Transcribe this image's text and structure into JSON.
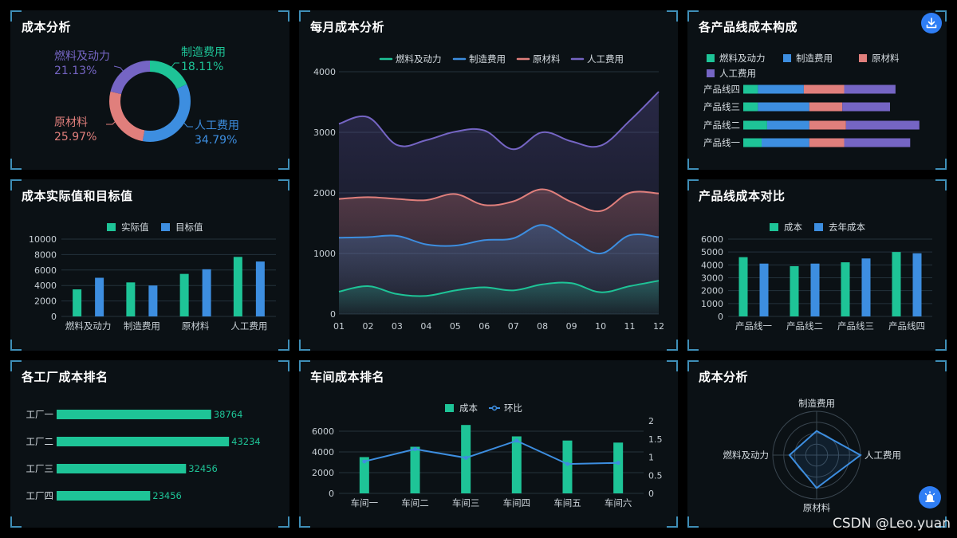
{
  "colors": {
    "fuel": "#1ec497",
    "manufacturing": "#3d8ee0",
    "raw": "#e07f7c",
    "labor": "#7565c4",
    "actual": "#1ec497",
    "target": "#3d8ee0",
    "axis_text": "#c8d0d6",
    "grid": "#24323c"
  },
  "panels": {
    "cost_analysis": {
      "title": "成本分析",
      "donut": [
        {
          "name": "制造费用",
          "percent": "18.11%",
          "value": 18.11,
          "color": "#1ec497"
        },
        {
          "name": "人工费用",
          "percent": "34.79%",
          "value": 34.79,
          "color": "#3d8ee0"
        },
        {
          "name": "原材料",
          "percent": "25.97%",
          "value": 25.97,
          "color": "#e07f7c"
        },
        {
          "name": "燃料及动力",
          "percent": "21.13%",
          "value": 21.13,
          "color": "#7565c4"
        }
      ]
    },
    "monthly": {
      "title": "每月成本分析"
    },
    "product_line_composition": {
      "title": "各产品线成本构成"
    },
    "actual_vs_target": {
      "title": "成本实际值和目标值"
    },
    "product_line_compare": {
      "title": "产品线成本对比"
    },
    "factory_ranking": {
      "title": "各工厂成本排名"
    },
    "workshop_ranking": {
      "title": "车间成本排名"
    },
    "radar": {
      "title": "成本分析"
    }
  },
  "chart_data": [
    {
      "id": "donut",
      "type": "pie",
      "categories": [
        "制造费用",
        "人工费用",
        "原材料",
        "燃料及动力"
      ],
      "values": [
        18.11,
        34.79,
        25.97,
        21.13
      ]
    },
    {
      "id": "monthly",
      "type": "area",
      "x": [
        "01",
        "02",
        "03",
        "04",
        "05",
        "06",
        "07",
        "08",
        "09",
        "10",
        "11",
        "12"
      ],
      "series": [
        {
          "name": "燃料及动力",
          "color": "#1ec497",
          "values": [
            370,
            460,
            330,
            300,
            390,
            440,
            390,
            490,
            510,
            360,
            460,
            550
          ]
        },
        {
          "name": "制造费用",
          "color": "#3d8ee0",
          "values": [
            1260,
            1270,
            1290,
            1150,
            1130,
            1220,
            1250,
            1470,
            1220,
            1000,
            1300,
            1270
          ]
        },
        {
          "name": "原材料",
          "color": "#e07f7c",
          "values": [
            1900,
            1930,
            1900,
            1880,
            1980,
            1800,
            1860,
            2060,
            1850,
            1700,
            2000,
            1990
          ]
        },
        {
          "name": "人工费用",
          "color": "#7565c4",
          "values": [
            3140,
            3250,
            2790,
            2870,
            3010,
            3030,
            2720,
            3000,
            2850,
            2780,
            3190,
            3670
          ]
        }
      ],
      "yticks": [
        0,
        1000,
        2000,
        3000,
        4000
      ],
      "ylim": [
        0,
        4000
      ],
      "grid": true,
      "legend": "top-center"
    },
    {
      "id": "composition",
      "type": "bar",
      "orientation": "horizontal-stacked",
      "categories": [
        "产品线四",
        "产品线三",
        "产品线二",
        "产品线一"
      ],
      "series": [
        {
          "name": "燃料及动力",
          "color": "#1ec497",
          "values": [
            8,
            8,
            13,
            10
          ]
        },
        {
          "name": "制造费用",
          "color": "#3d8ee0",
          "values": [
            25,
            28,
            23,
            26
          ]
        },
        {
          "name": "原材料",
          "color": "#e07f7c",
          "values": [
            22,
            18,
            20,
            19
          ]
        },
        {
          "name": "人工费用",
          "color": "#7565c4",
          "values": [
            28,
            26,
            40,
            36
          ]
        }
      ],
      "legend": "top-left"
    },
    {
      "id": "actual_target",
      "type": "bar",
      "categories": [
        "燃料及动力",
        "制造费用",
        "原材料",
        "人工费用"
      ],
      "series": [
        {
          "name": "实际值",
          "color": "#1ec497",
          "values": [
            3500,
            4400,
            5500,
            7700
          ]
        },
        {
          "name": "目标值",
          "color": "#3d8ee0",
          "values": [
            5000,
            4000,
            6100,
            7100
          ]
        }
      ],
      "yticks": [
        0,
        2000,
        4000,
        6000,
        8000,
        10000
      ],
      "ylim": [
        0,
        10000
      ],
      "legend": "top-center"
    },
    {
      "id": "product_compare",
      "type": "bar",
      "categories": [
        "产品线一",
        "产品线二",
        "产品线三",
        "产品线四"
      ],
      "series": [
        {
          "name": "成本",
          "color": "#1ec497",
          "values": [
            4600,
            3900,
            4200,
            5000
          ]
        },
        {
          "name": "去年成本",
          "color": "#3d8ee0",
          "values": [
            4100,
            4100,
            4500,
            4900
          ]
        }
      ],
      "yticks": [
        0,
        1000,
        2000,
        3000,
        4000,
        5000,
        6000
      ],
      "ylim": [
        0,
        6000
      ],
      "legend": "top-center"
    },
    {
      "id": "factory",
      "type": "bar",
      "orientation": "horizontal",
      "categories": [
        "工厂一",
        "工厂二",
        "工厂三",
        "工厂四"
      ],
      "values": [
        38764,
        43234,
        32456,
        23456
      ],
      "labels": [
        "38764",
        "43234",
        "32456",
        "23456"
      ],
      "xlim": [
        0,
        50000
      ]
    },
    {
      "id": "workshop",
      "type": "bar",
      "categories": [
        "车间一",
        "车间二",
        "车间三",
        "车间四",
        "车间五",
        "车间六"
      ],
      "series": [
        {
          "name": "成本",
          "color": "#1ec497",
          "values": [
            3500,
            4500,
            6600,
            5500,
            5100,
            4900
          ]
        },
        {
          "name": "环比",
          "color": "#3d8ee0",
          "type": "line",
          "axis": "right",
          "values": [
            0.88,
            1.22,
            0.98,
            1.45,
            0.81,
            0.84
          ]
        }
      ],
      "yticks": [
        0,
        2000,
        4000,
        6000
      ],
      "ylim": [
        0,
        7000
      ],
      "y2ticks": [
        "0",
        "0.5",
        "1",
        "1.5",
        "2"
      ],
      "y2lim": [
        0,
        2
      ],
      "legend": "top-center"
    },
    {
      "id": "radar",
      "type": "radar",
      "indicators": [
        "制造费用",
        "人工费用",
        "原材料",
        "燃料及动力"
      ],
      "values": [
        0.55,
        1.0,
        0.75,
        0.62
      ],
      "color": "#3d8ee0"
    }
  ],
  "watermark": "CSDN @Leo.yuan",
  "icons": {
    "download": "download-icon",
    "alarm": "alarm-icon"
  }
}
